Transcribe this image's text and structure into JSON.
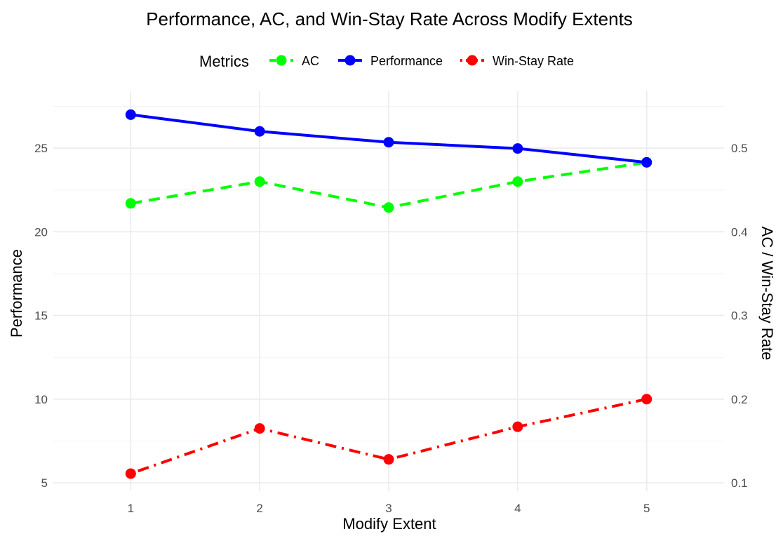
{
  "chart_data": {
    "type": "line",
    "title": "Performance, AC, and Win-Stay Rate Across Modify Extents",
    "xlabel": "Modify Extent",
    "ylabel": "Performance",
    "ylabel_right": "AC / Win-Stay Rate",
    "x": [
      1,
      2,
      3,
      4,
      5
    ],
    "x_ticks": [
      "1",
      "2",
      "3",
      "4",
      "5"
    ],
    "xlim": [
      0.4,
      5.6
    ],
    "ylim": [
      4.5,
      28.4
    ],
    "y_ticks": [
      "5",
      "10",
      "15",
      "20",
      "25"
    ],
    "y_right_ticks": [
      "0.1",
      "0.2",
      "0.3",
      "0.4",
      "0.5"
    ],
    "secondary_axis_scale": 50,
    "grid": true,
    "legend": {
      "title": "Metrics",
      "position": "top"
    },
    "series": [
      {
        "name": "AC",
        "axis": "right",
        "values": [
          0.434,
          0.46,
          0.429,
          0.46,
          0.483
        ],
        "color": "#00ff00",
        "dash": "dashed"
      },
      {
        "name": "Performance",
        "axis": "left",
        "values": [
          27.0,
          26.0,
          25.35,
          24.98,
          24.15
        ],
        "color": "#0000ff",
        "dash": "solid"
      },
      {
        "name": "Win-Stay Rate",
        "axis": "right",
        "values": [
          0.111,
          0.165,
          0.128,
          0.167,
          0.2
        ],
        "color": "#ff0000",
        "dash": "dotdash"
      }
    ]
  }
}
